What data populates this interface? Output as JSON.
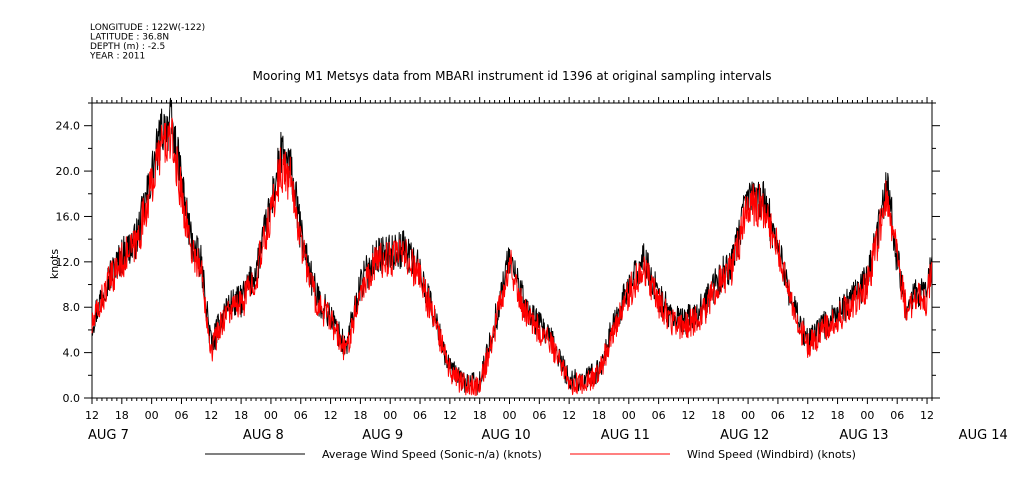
{
  "meta_lines": [
    "LONGITUDE : 122W(-122)",
    "LATITUDE : 36.8N",
    "DEPTH (m) : -2.5",
    "YEAR : 2011"
  ],
  "chart_data": {
    "type": "line",
    "title": "Mooring M1 Metsys data from MBARI instrument id 1396 at original sampling intervals",
    "ylabel": "knots",
    "xlabel": "",
    "ylim": [
      0,
      26
    ],
    "yticks": [
      "0.0",
      "4.0",
      "8.0",
      "12.0",
      "16.0",
      "20.0",
      "24.0"
    ],
    "xlim": [
      "2011-08-07T12:00",
      "2011-08-14T13:00"
    ],
    "xtick_labels": [
      "12",
      "18",
      "00",
      "06",
      "12",
      "18",
      "00",
      "06",
      "12",
      "18",
      "00",
      "06",
      "12",
      "18",
      "00",
      "06",
      "12",
      "18",
      "00",
      "06",
      "12",
      "18",
      "00",
      "06",
      "12",
      "18",
      "00",
      "06",
      "12"
    ],
    "day_labels": [
      "AUG  7",
      "AUG  8",
      "AUG  9",
      "AUG 10",
      "AUG 11",
      "AUG 12",
      "AUG 13",
      "AUG 14"
    ],
    "grid": false,
    "legend_position": "bottom",
    "series": [
      {
        "name": "Average Wind Speed (Sonic-n/a) (knots)",
        "color": "#000000",
        "x": [
          "2011-08-07T12:00",
          "2011-08-07T15:00",
          "2011-08-07T18:00",
          "2011-08-07T21:00",
          "2011-08-08T00:00",
          "2011-08-08T02:00",
          "2011-08-08T04:00",
          "2011-08-08T06:00",
          "2011-08-08T08:00",
          "2011-08-08T10:00",
          "2011-08-08T12:00",
          "2011-08-08T15:00",
          "2011-08-08T18:00",
          "2011-08-08T21:00",
          "2011-08-09T00:00",
          "2011-08-09T02:00",
          "2011-08-09T04:00",
          "2011-08-09T06:00",
          "2011-08-09T09:00",
          "2011-08-09T12:00",
          "2011-08-09T15:00",
          "2011-08-09T18:00",
          "2011-08-09T21:00",
          "2011-08-10T00:00",
          "2011-08-10T03:00",
          "2011-08-10T06:00",
          "2011-08-10T09:00",
          "2011-08-10T12:00",
          "2011-08-10T15:00",
          "2011-08-10T18:00",
          "2011-08-10T21:00",
          "2011-08-11T00:00",
          "2011-08-11T03:00",
          "2011-08-11T06:00",
          "2011-08-11T09:00",
          "2011-08-11T12:00",
          "2011-08-11T15:00",
          "2011-08-11T18:00",
          "2011-08-11T21:00",
          "2011-08-12T00:00",
          "2011-08-12T03:00",
          "2011-08-12T06:00",
          "2011-08-12T09:00",
          "2011-08-12T12:00",
          "2011-08-12T15:00",
          "2011-08-12T18:00",
          "2011-08-12T21:00",
          "2011-08-13T00:00",
          "2011-08-13T03:00",
          "2011-08-13T06:00",
          "2011-08-13T09:00",
          "2011-08-13T12:00",
          "2011-08-13T15:00",
          "2011-08-13T18:00",
          "2011-08-13T21:00",
          "2011-08-14T00:00",
          "2011-08-14T02:00",
          "2011-08-14T04:00",
          "2011-08-14T06:00",
          "2011-08-14T08:00",
          "2011-08-14T10:00",
          "2011-08-14T12:00",
          "2011-08-14T13:00"
        ],
        "values": [
          6.6,
          10.3,
          12.5,
          14.0,
          19.6,
          23.6,
          24.2,
          19.0,
          13.8,
          11.7,
          4.6,
          8.0,
          8.6,
          11.2,
          17.0,
          21.4,
          20.2,
          14.6,
          9.0,
          7.2,
          4.3,
          10.0,
          12.5,
          12.8,
          13.2,
          11.1,
          7.0,
          2.5,
          1.4,
          1.2,
          6.5,
          12.6,
          8.1,
          6.4,
          4.6,
          1.5,
          1.6,
          2.4,
          6.6,
          9.7,
          12.2,
          8.9,
          7.0,
          6.9,
          8.0,
          10.5,
          12.0,
          17.9,
          17.6,
          13.5,
          8.2,
          4.9,
          6.3,
          7.5,
          8.8,
          10.4,
          14.4,
          18.7,
          12.4,
          7.9,
          9.3,
          9.1,
          12.5
        ]
      },
      {
        "name": "Wind Speed (Windbird) (knots)",
        "color": "#ff0000",
        "x": [
          "2011-08-07T12:00",
          "2011-08-07T15:00",
          "2011-08-07T18:00",
          "2011-08-07T21:00",
          "2011-08-08T00:00",
          "2011-08-08T02:00",
          "2011-08-08T04:00",
          "2011-08-08T06:00",
          "2011-08-08T08:00",
          "2011-08-08T10:00",
          "2011-08-08T12:00",
          "2011-08-08T15:00",
          "2011-08-08T18:00",
          "2011-08-08T21:00",
          "2011-08-09T00:00",
          "2011-08-09T02:00",
          "2011-08-09T04:00",
          "2011-08-09T06:00",
          "2011-08-09T09:00",
          "2011-08-09T12:00",
          "2011-08-09T15:00",
          "2011-08-09T18:00",
          "2011-08-09T21:00",
          "2011-08-10T00:00",
          "2011-08-10T03:00",
          "2011-08-10T06:00",
          "2011-08-10T09:00",
          "2011-08-10T12:00",
          "2011-08-10T15:00",
          "2011-08-10T18:00",
          "2011-08-10T21:00",
          "2011-08-11T00:00",
          "2011-08-11T03:00",
          "2011-08-11T06:00",
          "2011-08-11T09:00",
          "2011-08-11T12:00",
          "2011-08-11T15:00",
          "2011-08-11T18:00",
          "2011-08-11T21:00",
          "2011-08-12T00:00",
          "2011-08-12T03:00",
          "2011-08-12T06:00",
          "2011-08-12T09:00",
          "2011-08-12T12:00",
          "2011-08-12T15:00",
          "2011-08-12T18:00",
          "2011-08-12T21:00",
          "2011-08-13T00:00",
          "2011-08-13T03:00",
          "2011-08-13T06:00",
          "2011-08-13T09:00",
          "2011-08-13T12:00",
          "2011-08-13T15:00",
          "2011-08-13T18:00",
          "2011-08-13T21:00",
          "2011-08-14T00:00",
          "2011-08-14T02:00",
          "2011-08-14T04:00",
          "2011-08-14T06:00",
          "2011-08-14T08:00",
          "2011-08-14T10:00",
          "2011-08-14T12:00",
          "2011-08-14T13:00"
        ],
        "values": [
          6.3,
          9.8,
          12.1,
          13.6,
          18.8,
          22.4,
          22.8,
          18.0,
          13.2,
          11.2,
          4.3,
          7.6,
          8.2,
          10.8,
          16.2,
          20.3,
          19.1,
          13.9,
          8.6,
          6.8,
          4.0,
          9.6,
          12.0,
          12.3,
          12.6,
          10.6,
          6.7,
          2.2,
          1.1,
          0.9,
          6.1,
          12.0,
          7.7,
          6.0,
          4.2,
          1.2,
          1.3,
          2.0,
          6.2,
          9.2,
          11.6,
          8.4,
          6.6,
          6.4,
          7.6,
          10.0,
          11.5,
          17.1,
          16.9,
          12.9,
          7.8,
          4.5,
          5.9,
          7.0,
          8.4,
          9.9,
          13.8,
          18.1,
          11.9,
          7.4,
          8.8,
          8.6,
          12.0
        ]
      }
    ]
  }
}
